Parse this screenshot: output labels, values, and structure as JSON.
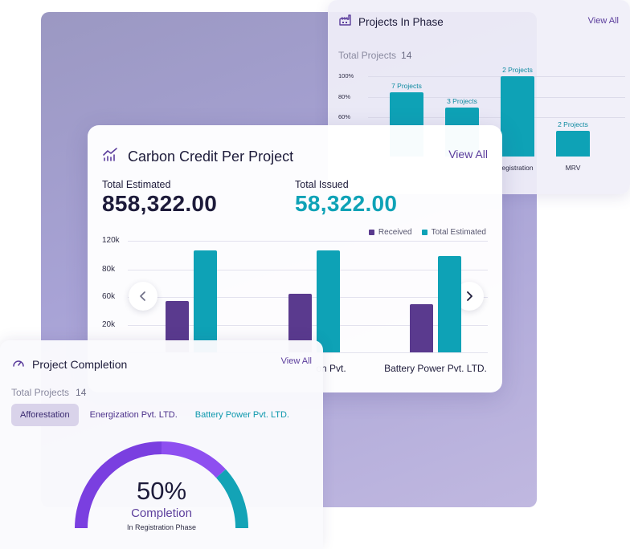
{
  "phase": {
    "title": "Projects In Phase",
    "view_all": "View All",
    "total_label": "Total Projects",
    "total_value": "14",
    "y_ticks": [
      "100%",
      "80%",
      "60%"
    ],
    "bars": [
      {
        "label": "7 Projects",
        "category": "",
        "percent": 80
      },
      {
        "label": "3 Projects",
        "category": "",
        "percent": 61
      },
      {
        "label": "2 Projects",
        "category": "egistration",
        "percent": 100
      },
      {
        "label": "2 Projects",
        "category": "MRV",
        "percent": 32
      }
    ]
  },
  "carbon": {
    "title": "Carbon Credit Per Project",
    "view_all": "View All",
    "estimated_label": "Total Estimated",
    "estimated_value": "858,322.00",
    "issued_label": "Total Issued",
    "issued_value": "58,322.00",
    "legend": {
      "received": "Received",
      "estimated": "Total Estimated"
    },
    "colors": {
      "received": "#5a3a8e",
      "estimated": "#0ea2b6",
      "issued_text": "#0ea2b6"
    },
    "chart_data": {
      "type": "bar",
      "y_ticks": [
        "120k",
        "80k",
        "60k",
        "20k"
      ],
      "categories": [
        "",
        "on Pvt.",
        "Battery Power Pvt. LTD."
      ],
      "series": [
        {
          "name": "Received",
          "values": [
            55000,
            63000,
            52000
          ]
        },
        {
          "name": "Total Estimated",
          "values": [
            110000,
            110000,
            104000
          ]
        }
      ]
    }
  },
  "completion": {
    "title": "Project Completion",
    "view_all": "View All",
    "total_label": "Total Projects",
    "total_value": "14",
    "tabs": [
      "Afforestation",
      "Energization Pvt. LTD.",
      "Battery Power Pvt. LTD."
    ],
    "percent_text": "50%",
    "completion_label": "Completion",
    "phase_label": "In Registration Phase",
    "percent": 50
  }
}
